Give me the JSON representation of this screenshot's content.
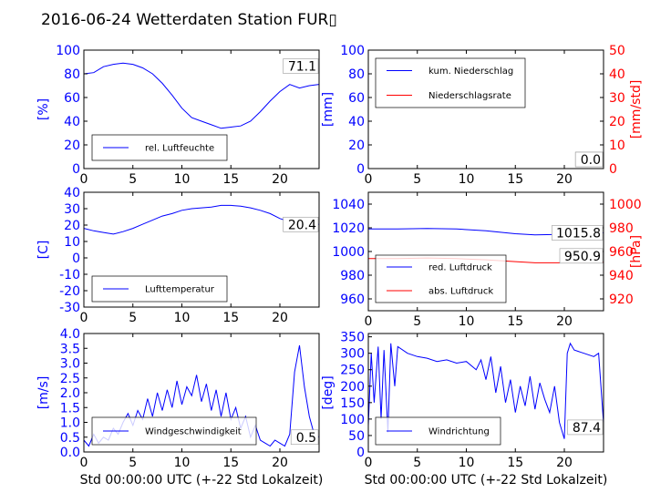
{
  "title": "2016-06-24 Wetterdaten Station FUR▯",
  "colors": {
    "primary": "#0000ff",
    "secondary": "#ff0000",
    "axis": "#000000"
  },
  "chart_data": [
    {
      "id": "humidity",
      "type": "line",
      "ylabel": "[%]",
      "xlim": [
        0,
        24
      ],
      "xticks": [
        0,
        5,
        10,
        15,
        20
      ],
      "ylim": [
        0,
        100
      ],
      "yticks": [
        0,
        20,
        40,
        60,
        80,
        100
      ],
      "legend": {
        "placement": "lower-left",
        "entries": [
          "rel. Luftfeuchte"
        ]
      },
      "last_value_label": "71.1",
      "series": [
        {
          "name": "rel. Luftfeuchte",
          "axis": "left",
          "color": "#0000ff",
          "points": [
            [
              0,
              80
            ],
            [
              1,
              81
            ],
            [
              2,
              86
            ],
            [
              3,
              88
            ],
            [
              4,
              89
            ],
            [
              5,
              88
            ],
            [
              6,
              85
            ],
            [
              7,
              80
            ],
            [
              8,
              72
            ],
            [
              9,
              62
            ],
            [
              10,
              51
            ],
            [
              11,
              43
            ],
            [
              12,
              40
            ],
            [
              13,
              37
            ],
            [
              14,
              34
            ],
            [
              15,
              35
            ],
            [
              16,
              36
            ],
            [
              17,
              40
            ],
            [
              18,
              48
            ],
            [
              19,
              57
            ],
            [
              20,
              65
            ],
            [
              21,
              71
            ],
            [
              22,
              68
            ],
            [
              23,
              70
            ],
            [
              24,
              71.1
            ]
          ]
        }
      ]
    },
    {
      "id": "precipitation",
      "type": "line",
      "ylabel": "[mm]",
      "y2label": "[mm/std]",
      "xlim": [
        0,
        24
      ],
      "xticks": [
        0,
        5,
        10,
        15,
        20
      ],
      "ylim": [
        0,
        100
      ],
      "yticks": [
        0,
        20,
        40,
        60,
        80,
        100
      ],
      "y2lim": [
        0,
        50
      ],
      "y2ticks": [
        0,
        10,
        20,
        30,
        40,
        50
      ],
      "legend": {
        "placement": "upper-left",
        "entries": [
          "kum. Niederschlag",
          "Niederschlagsrate"
        ]
      },
      "last_value_label": "0.0",
      "last_value_label_2": "0.0",
      "series": [
        {
          "name": "kum. Niederschlag",
          "axis": "left",
          "color": "#0000ff",
          "points": [
            [
              0,
              0
            ],
            [
              24,
              0
            ]
          ]
        },
        {
          "name": "Niederschlagsrate",
          "axis": "right",
          "color": "#ff0000",
          "points": [
            [
              0,
              0
            ],
            [
              24,
              0
            ]
          ]
        }
      ]
    },
    {
      "id": "temperature",
      "type": "line",
      "ylabel": "[C]",
      "xlim": [
        0,
        24
      ],
      "xticks": [
        0,
        5,
        10,
        15,
        20
      ],
      "ylim": [
        -30,
        40
      ],
      "yticks": [
        -30,
        -20,
        -10,
        0,
        10,
        20,
        30,
        40
      ],
      "legend": {
        "placement": "lower-left",
        "entries": [
          "Lufttemperatur"
        ]
      },
      "last_value_label": "20.4",
      "series": [
        {
          "name": "Lufttemperatur",
          "axis": "left",
          "color": "#0000ff",
          "points": [
            [
              0,
              18
            ],
            [
              1,
              16.5
            ],
            [
              2,
              15.5
            ],
            [
              3,
              14.5
            ],
            [
              4,
              16
            ],
            [
              5,
              18
            ],
            [
              6,
              20.5
            ],
            [
              7,
              23
            ],
            [
              8,
              25.5
            ],
            [
              9,
              27
            ],
            [
              10,
              29
            ],
            [
              11,
              30
            ],
            [
              12,
              30.5
            ],
            [
              13,
              31
            ],
            [
              14,
              32
            ],
            [
              15,
              32
            ],
            [
              16,
              31.5
            ],
            [
              17,
              30.5
            ],
            [
              18,
              29
            ],
            [
              19,
              27
            ],
            [
              20,
              24
            ],
            [
              21,
              22
            ],
            [
              22,
              21.5
            ],
            [
              23,
              21
            ],
            [
              24,
              20.4
            ]
          ]
        }
      ]
    },
    {
      "id": "pressure",
      "type": "line",
      "ylabel": "",
      "y2label": "[hPa]",
      "xlim": [
        0,
        24
      ],
      "xticks": [
        0,
        5,
        10,
        15,
        20
      ],
      "ylim": [
        950,
        1050
      ],
      "yticks": [
        960,
        980,
        1000,
        1020,
        1040
      ],
      "y2lim": [
        910,
        1010
      ],
      "y2ticks": [
        920,
        940,
        960,
        980,
        1000
      ],
      "legend": {
        "placement": "lower-left",
        "entries": [
          "red. Luftdruck",
          "abs. Luftdruck"
        ]
      },
      "last_value_label": "1015.8",
      "last_value_label_2": "950.9",
      "series": [
        {
          "name": "red. Luftdruck",
          "axis": "left",
          "color": "#0000ff",
          "points": [
            [
              0,
              1019
            ],
            [
              3,
              1019
            ],
            [
              6,
              1019.5
            ],
            [
              9,
              1019
            ],
            [
              12,
              1017.5
            ],
            [
              15,
              1015
            ],
            [
              17,
              1014
            ],
            [
              20,
              1014.5
            ],
            [
              22,
              1015.2
            ],
            [
              24,
              1015.8
            ]
          ]
        },
        {
          "name": "abs. Luftdruck",
          "axis": "right",
          "color": "#ff0000",
          "points": [
            [
              0,
              954
            ],
            [
              3,
              954
            ],
            [
              6,
              954.5
            ],
            [
              9,
              954
            ],
            [
              12,
              953
            ],
            [
              15,
              951.5
            ],
            [
              17,
              950.5
            ],
            [
              20,
              950.5
            ],
            [
              22,
              950.7
            ],
            [
              24,
              950.9
            ]
          ]
        }
      ]
    },
    {
      "id": "windspeed",
      "type": "line",
      "ylabel": "[m/s]",
      "xlabel": "Std 00:00:00 UTC (+-22 Std Lokalzeit)",
      "xlim": [
        0,
        24
      ],
      "xticks": [
        0,
        5,
        10,
        15,
        20
      ],
      "ylim": [
        0,
        4
      ],
      "yticks": [
        0,
        0.5,
        1,
        1.5,
        2,
        2.5,
        3,
        3.5,
        4
      ],
      "ytick_labels": [
        "0.0",
        "0.5",
        "1.0",
        "1.5",
        "2.0",
        "2.5",
        "3.0",
        "3.5",
        "4.0"
      ],
      "legend": {
        "placement": "lower-left",
        "entries": [
          "Windgeschwindigkeit"
        ]
      },
      "last_value_label": "0.5",
      "series": [
        {
          "name": "Windgeschwindigkeit",
          "axis": "left",
          "color": "#0000ff",
          "points": [
            [
              0,
              0.4
            ],
            [
              0.5,
              0.2
            ],
            [
              1,
              0.6
            ],
            [
              1.5,
              0.3
            ],
            [
              2,
              0.5
            ],
            [
              2.5,
              0.4
            ],
            [
              3,
              0.8
            ],
            [
              3.5,
              0.6
            ],
            [
              4,
              1.0
            ],
            [
              4.5,
              1.3
            ],
            [
              5,
              0.9
            ],
            [
              5.5,
              1.4
            ],
            [
              6,
              1.1
            ],
            [
              6.5,
              1.8
            ],
            [
              7,
              1.2
            ],
            [
              7.5,
              2.0
            ],
            [
              8,
              1.4
            ],
            [
              8.5,
              2.1
            ],
            [
              9,
              1.5
            ],
            [
              9.5,
              2.4
            ],
            [
              10,
              1.6
            ],
            [
              10.5,
              2.2
            ],
            [
              11,
              1.9
            ],
            [
              11.5,
              2.6
            ],
            [
              12,
              1.7
            ],
            [
              12.5,
              2.3
            ],
            [
              13,
              1.4
            ],
            [
              13.5,
              2.1
            ],
            [
              14,
              1.2
            ],
            [
              14.5,
              2.0
            ],
            [
              15,
              1.1
            ],
            [
              15.5,
              1.5
            ],
            [
              16,
              0.8
            ],
            [
              16.5,
              1.2
            ],
            [
              17,
              0.5
            ],
            [
              17.5,
              0.9
            ],
            [
              18,
              0.4
            ],
            [
              18.5,
              0.3
            ],
            [
              19,
              0.2
            ],
            [
              19.5,
              0.4
            ],
            [
              20,
              0.3
            ],
            [
              20.5,
              0.2
            ],
            [
              21,
              0.6
            ],
            [
              21.5,
              2.7
            ],
            [
              22,
              3.6
            ],
            [
              22.5,
              2.2
            ],
            [
              23,
              1.2
            ],
            [
              23.5,
              0.6
            ],
            [
              24,
              0.5
            ]
          ]
        }
      ]
    },
    {
      "id": "winddirection",
      "type": "line",
      "ylabel": "[deg]",
      "xlabel": "Std 00:00:00 UTC (+-22 Std Lokalzeit)",
      "xlim": [
        0,
        24
      ],
      "xticks": [
        0,
        5,
        10,
        15,
        20
      ],
      "ylim": [
        0,
        360
      ],
      "yticks": [
        0,
        50,
        100,
        150,
        200,
        250,
        300,
        350
      ],
      "legend": {
        "placement": "lower-left",
        "entries": [
          "Windrichtung"
        ]
      },
      "last_value_label": "87.4",
      "series": [
        {
          "name": "Windrichtung",
          "axis": "left",
          "color": "#0000ff",
          "points": [
            [
              0,
              80
            ],
            [
              0.3,
              300
            ],
            [
              0.6,
              150
            ],
            [
              1,
              320
            ],
            [
              1.3,
              100
            ],
            [
              1.6,
              310
            ],
            [
              2,
              60
            ],
            [
              2.3,
              330
            ],
            [
              2.7,
              200
            ],
            [
              3,
              320
            ],
            [
              4,
              300
            ],
            [
              5,
              290
            ],
            [
              6,
              285
            ],
            [
              7,
              275
            ],
            [
              8,
              280
            ],
            [
              9,
              270
            ],
            [
              10,
              275
            ],
            [
              11,
              250
            ],
            [
              11.5,
              280
            ],
            [
              12,
              220
            ],
            [
              12.5,
              290
            ],
            [
              13,
              180
            ],
            [
              13.5,
              260
            ],
            [
              14,
              150
            ],
            [
              14.5,
              220
            ],
            [
              15,
              120
            ],
            [
              15.5,
              200
            ],
            [
              16,
              140
            ],
            [
              16.5,
              230
            ],
            [
              17,
              130
            ],
            [
              17.5,
              210
            ],
            [
              18,
              160
            ],
            [
              18.5,
              120
            ],
            [
              19,
              200
            ],
            [
              19.5,
              90
            ],
            [
              20,
              40
            ],
            [
              20.3,
              300
            ],
            [
              20.6,
              330
            ],
            [
              21,
              310
            ],
            [
              22,
              300
            ],
            [
              23,
              290
            ],
            [
              23.5,
              300
            ],
            [
              24,
              87.4
            ]
          ]
        }
      ]
    }
  ]
}
